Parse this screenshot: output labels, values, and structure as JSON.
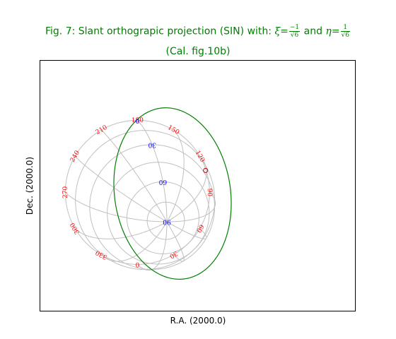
{
  "title": {
    "prefix": "Fig. 7: Slant orthograpic projection (SIN) with: ",
    "xi_symbol": "ξ",
    "eta_symbol": "η",
    "and_text": " and ",
    "equals": "=",
    "xi_num": "−1",
    "eta_num": "1",
    "denominator": "√6",
    "subtitle": "(Cal. fig.10b)"
  },
  "axes": {
    "xlabel": "R.A. (2000.0)",
    "ylabel": "Dec. (2000.0)"
  },
  "colors": {
    "title": "#008000",
    "border": "#008000",
    "grid": "#c0c0c0",
    "lon_labels": "#ff0000",
    "lat_labels": "#0000ff"
  },
  "projection": {
    "code": "SIN",
    "xi": -0.408248,
    "eta": 0.408248,
    "meridian_step_deg": 30,
    "parallel_step_deg": 15,
    "min_latitude_deg": 0
  },
  "lon_labels": [
    "0",
    "30",
    "60",
    "90",
    "120",
    "150",
    "180",
    "210",
    "240",
    "270",
    "300",
    "330"
  ],
  "lat_labels": [
    "0",
    "30",
    "60",
    "90"
  ]
}
